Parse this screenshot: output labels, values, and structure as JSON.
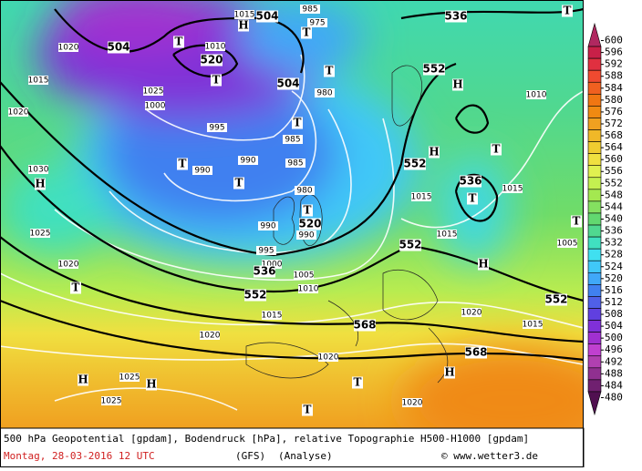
{
  "map": {
    "geopotential_labels": [
      "504",
      "504",
      "520",
      "504",
      "552",
      "536",
      "552",
      "536",
      "520",
      "552",
      "536",
      "552",
      "568",
      "552",
      "568"
    ],
    "pressure_labels": [
      "1020",
      "1015",
      "1025",
      "1000",
      "1010",
      "1015",
      "985",
      "975",
      "980",
      "995",
      "985",
      "990",
      "990",
      "985",
      "980",
      "990",
      "990",
      "995",
      "1000",
      "1005",
      "1010",
      "1015",
      "1020",
      "1020",
      "1025",
      "1030",
      "1020",
      "1025",
      "1025",
      "1020",
      "1020",
      "1020",
      "1015",
      "1015",
      "1015",
      "1015",
      "1010",
      "1005"
    ],
    "pressure_centers": [
      "T",
      "H",
      "T",
      "T",
      "T",
      "H",
      "T",
      "T",
      "H",
      "T",
      "H",
      "T",
      "T",
      "T",
      "T",
      "H",
      "T",
      "H",
      "H",
      "T",
      "H",
      "T",
      "T"
    ],
    "legend": {
      "values": [
        600,
        596,
        592,
        588,
        584,
        580,
        576,
        572,
        568,
        564,
        560,
        556,
        552,
        548,
        544,
        540,
        536,
        532,
        528,
        524,
        520,
        516,
        512,
        508,
        504,
        500,
        496,
        492,
        488,
        484,
        480
      ],
      "colors": [
        "#b02860",
        "#c82048",
        "#e03040",
        "#f04a30",
        "#f06020",
        "#f07612",
        "#f08a12",
        "#f0a020",
        "#f0b828",
        "#f0cc30",
        "#f0e040",
        "#e0f050",
        "#c4f050",
        "#a4e850",
        "#84e060",
        "#62d870",
        "#50d890",
        "#40e0c0",
        "#40e0f0",
        "#40c8f8",
        "#40a8f8",
        "#4080f0",
        "#5060e8",
        "#6040e0",
        "#8030d8",
        "#a030d0",
        "#c040d0",
        "#b040b0",
        "#903090",
        "#702070",
        "#501050"
      ]
    },
    "footer": {
      "description": "500 hPa Geopotential [gpdam], Bodendruck [hPa], relative Topographie H500-H1000 [gpdam]",
      "date": "Montag, 28-03-2016  12 UTC",
      "model": "(GFS)",
      "run": "(Analyse)",
      "credit": "© www.wetter3.de"
    }
  }
}
